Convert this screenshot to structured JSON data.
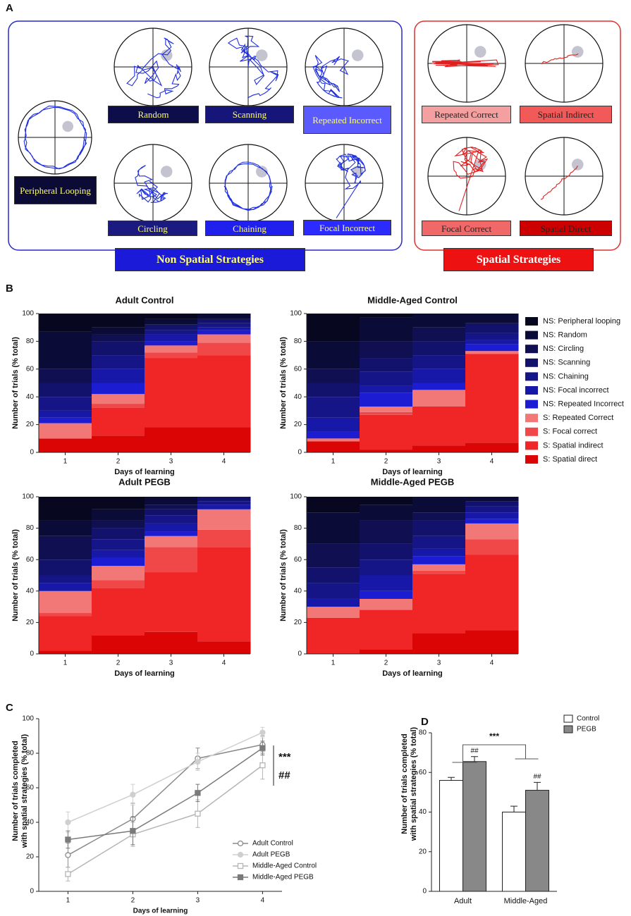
{
  "panel_a": {
    "label": "A",
    "pools": [
      {
        "label": "Peripheral Looping",
        "color": "#0b0b35"
      },
      {
        "label": "Random",
        "color": "#0d0d4a"
      },
      {
        "label": "Scanning",
        "color": "#15157a"
      },
      {
        "label": "Repeated Incorrect",
        "color": "#5a5aff"
      },
      {
        "label": "Circling",
        "color": "#1a1a80"
      },
      {
        "label": "Chaining",
        "color": "#2020ee"
      },
      {
        "label": "Focal Incorrect",
        "color": "#2b2bff"
      },
      {
        "label": "Repeated Correct",
        "color": "#f4a0a0"
      },
      {
        "label": "Spatial Indirect",
        "color": "#f25a5a"
      },
      {
        "label": "Focal Correct",
        "color": "#f06868"
      },
      {
        "label": "Spatial Direct",
        "color": "#cc0000"
      }
    ],
    "groups": [
      {
        "label": "Non Spatial Strategies",
        "color": "#1a1ad8"
      },
      {
        "label": "Spatial Strategies",
        "color": "#ee1111"
      }
    ]
  },
  "panel_b": {
    "label": "B",
    "strategies": [
      {
        "name": "NS: Peripheral looping",
        "color": "#07071f"
      },
      {
        "name": "NS: Random",
        "color": "#0b0b38"
      },
      {
        "name": "NS: Circling",
        "color": "#0f0f52"
      },
      {
        "name": "NS: Scanning",
        "color": "#12126c"
      },
      {
        "name": "NS: Chaining",
        "color": "#151588"
      },
      {
        "name": "NS: Focal incorrect",
        "color": "#1818a8"
      },
      {
        "name": "NS: Repeated Incorrect",
        "color": "#1c1cd2"
      },
      {
        "name": "S: Repeated Correct",
        "color": "#f27878"
      },
      {
        "name": "S: Focal correct",
        "color": "#f04848"
      },
      {
        "name": "S: Spatial indirect",
        "color": "#f02626"
      },
      {
        "name": "S: Spatial direct",
        "color": "#dc0505"
      }
    ]
  },
  "panel_c": {
    "label": "C"
  },
  "panel_d": {
    "label": "D"
  },
  "chart_data": [
    {
      "type": "stacked",
      "title": "Adult Control",
      "categories": [
        "1",
        "2",
        "3",
        "4"
      ],
      "series": [
        {
          "values": [
            13,
            10,
            4,
            0
          ]
        },
        {
          "values": [
            27,
            5,
            4,
            4
          ]
        },
        {
          "values": [
            10,
            5,
            0,
            0
          ]
        },
        {
          "values": [
            10,
            10,
            4,
            3
          ]
        },
        {
          "values": [
            10,
            10,
            3,
            3
          ]
        },
        {
          "values": [
            5,
            10,
            5,
            2
          ]
        },
        {
          "values": [
            4,
            8,
            3,
            3
          ]
        },
        {
          "values": [
            11,
            7,
            5,
            6
          ]
        },
        {
          "values": [
            0,
            3,
            4,
            9
          ]
        },
        {
          "values": [
            0,
            20,
            50,
            52
          ]
        },
        {
          "values": [
            10,
            12,
            18,
            18
          ]
        }
      ],
      "ylim": [
        0,
        100
      ],
      "yticks": [
        0,
        20,
        40,
        60,
        80,
        100
      ],
      "xlabel": "Days of learning",
      "ylabel": "Number of trials (% total)"
    },
    {
      "type": "stacked",
      "title": "Middle-Aged Control",
      "categories": [
        "1",
        "2",
        "3",
        "4"
      ],
      "series": [
        {
          "values": [
            20,
            3,
            0,
            0
          ]
        },
        {
          "values": [
            20,
            17,
            10,
            7
          ]
        },
        {
          "values": [
            10,
            12,
            10,
            0
          ]
        },
        {
          "values": [
            10,
            10,
            10,
            7
          ]
        },
        {
          "values": [
            15,
            10,
            10,
            5
          ]
        },
        {
          "values": [
            10,
            5,
            10,
            3
          ]
        },
        {
          "values": [
            5,
            10,
            5,
            5
          ]
        },
        {
          "values": [
            2,
            4,
            12,
            2
          ]
        },
        {
          "values": [
            0,
            2,
            0,
            0
          ]
        },
        {
          "values": [
            0,
            25,
            28,
            64
          ]
        },
        {
          "values": [
            8,
            2,
            5,
            7
          ]
        }
      ],
      "ylim": [
        0,
        100
      ],
      "yticks": [
        0,
        20,
        40,
        60,
        80,
        100
      ],
      "xlabel": "Days of learning",
      "ylabel": "Number of trials (% total)"
    },
    {
      "type": "stacked",
      "title": "Adult PEGB",
      "categories": [
        "1",
        "2",
        "3",
        "4"
      ],
      "series": [
        {
          "values": [
            15,
            8,
            0,
            0
          ]
        },
        {
          "values": [
            10,
            7,
            5,
            0
          ]
        },
        {
          "values": [
            15,
            5,
            3,
            0
          ]
        },
        {
          "values": [
            10,
            7,
            4,
            3
          ]
        },
        {
          "values": [
            5,
            7,
            5,
            2
          ]
        },
        {
          "values": [
            5,
            5,
            5,
            3
          ]
        },
        {
          "values": [
            0,
            5,
            3,
            0
          ]
        },
        {
          "values": [
            14,
            9,
            7,
            13
          ]
        },
        {
          "values": [
            2,
            5,
            16,
            11
          ]
        },
        {
          "values": [
            22,
            30,
            38,
            60
          ]
        },
        {
          "values": [
            2,
            12,
            14,
            8
          ]
        }
      ],
      "ylim": [
        0,
        100
      ],
      "yticks": [
        0,
        20,
        40,
        60,
        80,
        100
      ],
      "xlabel": "Days of learning",
      "ylabel": "Number of trials (% total)"
    },
    {
      "type": "stacked",
      "title": "Middle-Aged PEGB",
      "categories": [
        "1",
        "2",
        "3",
        "4"
      ],
      "series": [
        {
          "values": [
            10,
            5,
            0,
            0
          ]
        },
        {
          "values": [
            20,
            10,
            10,
            3
          ]
        },
        {
          "values": [
            15,
            15,
            5,
            0
          ]
        },
        {
          "values": [
            10,
            10,
            10,
            3
          ]
        },
        {
          "values": [
            10,
            10,
            8,
            4
          ]
        },
        {
          "values": [
            5,
            10,
            5,
            4
          ]
        },
        {
          "values": [
            0,
            5,
            5,
            3
          ]
        },
        {
          "values": [
            7,
            7,
            4,
            10
          ]
        },
        {
          "values": [
            0,
            0,
            2,
            10
          ]
        },
        {
          "values": [
            23,
            25,
            38,
            48
          ]
        },
        {
          "values": [
            0,
            3,
            13,
            15
          ]
        }
      ],
      "ylim": [
        0,
        100
      ],
      "yticks": [
        0,
        20,
        40,
        60,
        80,
        100
      ],
      "xlabel": "Days of learning",
      "ylabel": "Number of trials (% total)"
    },
    {
      "type": "line",
      "x": [
        1,
        2,
        3,
        4
      ],
      "series": [
        {
          "name": "Adult Control",
          "color": "#8a8a8a",
          "marker": "circle-open",
          "values": [
            21,
            42,
            77,
            85
          ],
          "errors": [
            7,
            9,
            6,
            5
          ]
        },
        {
          "name": "Adult PEGB",
          "color": "#cfcfcf",
          "marker": "circle",
          "values": [
            40,
            56,
            75,
            92
          ],
          "errors": [
            6,
            6,
            5,
            3
          ]
        },
        {
          "name": "Middle-Aged Control",
          "color": "#b5b5b5",
          "marker": "square-open",
          "values": [
            10,
            33,
            45,
            73
          ],
          "errors": [
            4,
            7,
            8,
            8
          ]
        },
        {
          "name": "Middle-Aged PEGB",
          "color": "#7a7a7a",
          "marker": "square",
          "values": [
            30,
            35,
            57,
            83
          ],
          "errors": [
            5,
            8,
            5,
            4
          ]
        }
      ],
      "xlim": [
        0.55,
        4.3
      ],
      "xticks": [
        1,
        2,
        3,
        4
      ],
      "ylim": [
        0,
        100
      ],
      "yticks": [
        0,
        20,
        40,
        60,
        80,
        100
      ],
      "xlabel": "Days of learning",
      "ylabel": [
        "Number of trials completed",
        "with spatial strategies (% total)"
      ],
      "annotations": [
        "***",
        "##"
      ]
    },
    {
      "type": "bar",
      "categories": [
        "Adult",
        "Middle-Aged"
      ],
      "series": [
        {
          "name": "Control",
          "color": "#ffffff",
          "values": [
            56,
            40
          ],
          "errors": [
            1.5,
            3
          ]
        },
        {
          "name": "PEGB",
          "color": "#888888",
          "values": [
            65.5,
            51
          ],
          "errors": [
            2.5,
            4
          ]
        }
      ],
      "ylim": [
        0,
        80
      ],
      "yticks": [
        0,
        20,
        40,
        60,
        80
      ],
      "ylabel": [
        "Number of trials completed",
        "with spatial strategies (% total)"
      ],
      "annotations": [
        "***",
        "##",
        "##"
      ]
    }
  ]
}
